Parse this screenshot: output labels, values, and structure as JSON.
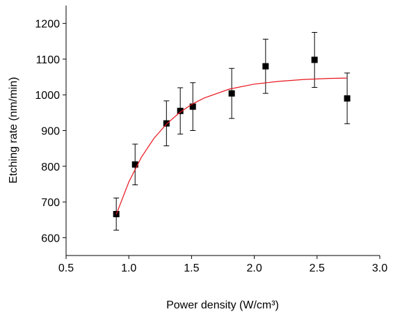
{
  "chart_data": {
    "type": "scatter",
    "xlabel": "Power density (W/cm³)",
    "ylabel": "Etching rate (nm/min)",
    "xlim": [
      0.5,
      3.0
    ],
    "xticks": [
      0.5,
      {
        "value": 1,
        "label": "1.0"
      },
      1.5,
      {
        "value": 2,
        "label": "2.0"
      },
      2.5,
      {
        "value": 3,
        "label": "3.0"
      }
    ],
    "ylim": [
      550,
      1250
    ],
    "yticks": [
      600,
      700,
      800,
      900,
      1000,
      1100,
      1200
    ],
    "series": [
      {
        "mode": "markers",
        "color": "#000000",
        "x": [
          0.9,
          1.05,
          1.3,
          1.41,
          1.51,
          1.82,
          2.09,
          2.48,
          2.74
        ],
        "values": [
          666,
          805,
          920,
          955,
          967,
          1004,
          1080,
          1098,
          990
        ],
        "errors": [
          45,
          57,
          63,
          65,
          67,
          70,
          76,
          77,
          71
        ]
      },
      {
        "mode": "line",
        "color": "#e8141c",
        "x": [
          0.9,
          1.0,
          1.1,
          1.2,
          1.3,
          1.4,
          1.5,
          1.6,
          1.8,
          2.0,
          2.2,
          2.4,
          2.6,
          2.74
        ],
        "values": [
          665,
          756,
          825,
          878,
          918,
          949,
          973,
          991,
          1016,
          1030,
          1038,
          1043,
          1046,
          1047
        ]
      }
    ]
  }
}
